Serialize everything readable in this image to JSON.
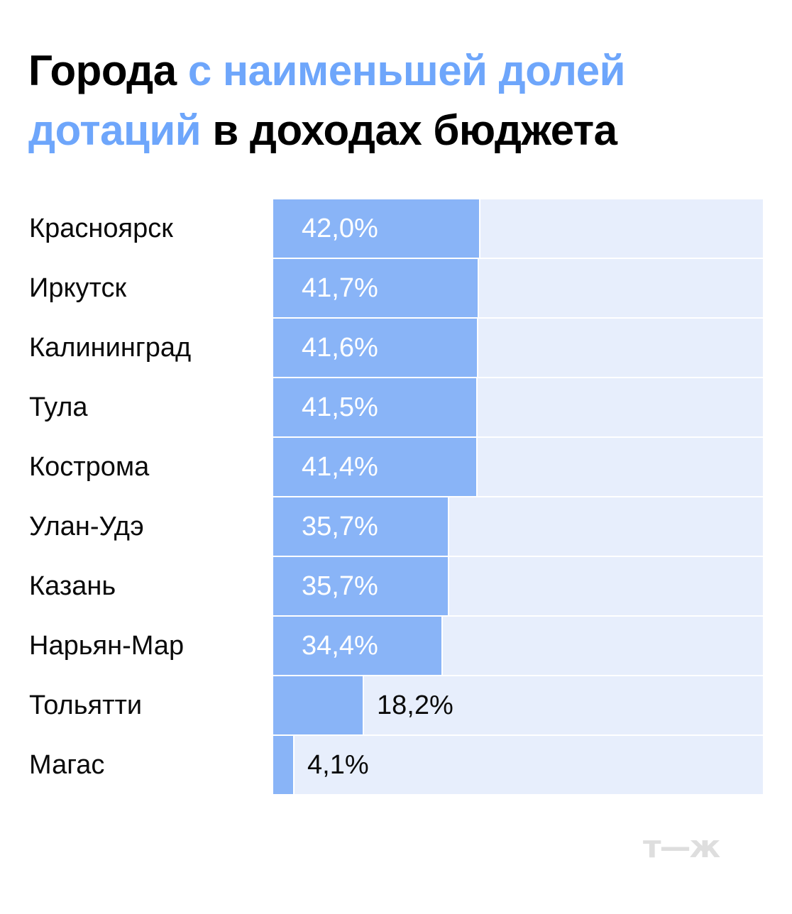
{
  "title": {
    "part1": "Города ",
    "part2_accent": "с наименьшей долей дотаций",
    "part3": " в доходах бюджета"
  },
  "colors": {
    "accent_title": "#6ea6fb",
    "bar": "#89b4f7",
    "track": "#e7eefc",
    "logo": "#dedede"
  },
  "logo": {
    "text": "т—ж"
  },
  "rows": [
    {
      "city": "Красноярск",
      "value": 42.0,
      "label": "42,0%"
    },
    {
      "city": "Иркутск",
      "value": 41.7,
      "label": "41,7%"
    },
    {
      "city": "Калининград",
      "value": 41.6,
      "label": "41,6%"
    },
    {
      "city": "Тула",
      "value": 41.5,
      "label": "41,5%"
    },
    {
      "city": "Кострома",
      "value": 41.4,
      "label": "41,4%"
    },
    {
      "city": "Улан-Удэ",
      "value": 35.7,
      "label": "35,7%"
    },
    {
      "city": "Казань",
      "value": 35.7,
      "label": "35,7%"
    },
    {
      "city": "Нарьян-Мар",
      "value": 34.4,
      "label": "34,4%"
    },
    {
      "city": "Тольятти",
      "value": 18.2,
      "label": "18,2%"
    },
    {
      "city": "Магас",
      "value": 4.1,
      "label": "4,1%"
    }
  ],
  "chart_data": {
    "type": "bar",
    "orientation": "horizontal",
    "title": "Города с наименьшей долей дотаций в доходах бюджета",
    "categories": [
      "Красноярск",
      "Иркутск",
      "Калининград",
      "Тула",
      "Кострома",
      "Улан-Удэ",
      "Казань",
      "Нарьян-Мар",
      "Тольятти",
      "Магас"
    ],
    "values": [
      42.0,
      41.7,
      41.6,
      41.5,
      41.4,
      35.7,
      35.7,
      34.4,
      18.2,
      4.1
    ],
    "value_labels": [
      "42,0%",
      "41,7%",
      "41,6%",
      "41,5%",
      "41,4%",
      "35,7%",
      "35,7%",
      "34,4%",
      "18,2%",
      "4,1%"
    ],
    "xlabel": "",
    "ylabel": "",
    "xlim": [
      0,
      100
    ],
    "unit": "%",
    "grid": false,
    "legend": null
  }
}
